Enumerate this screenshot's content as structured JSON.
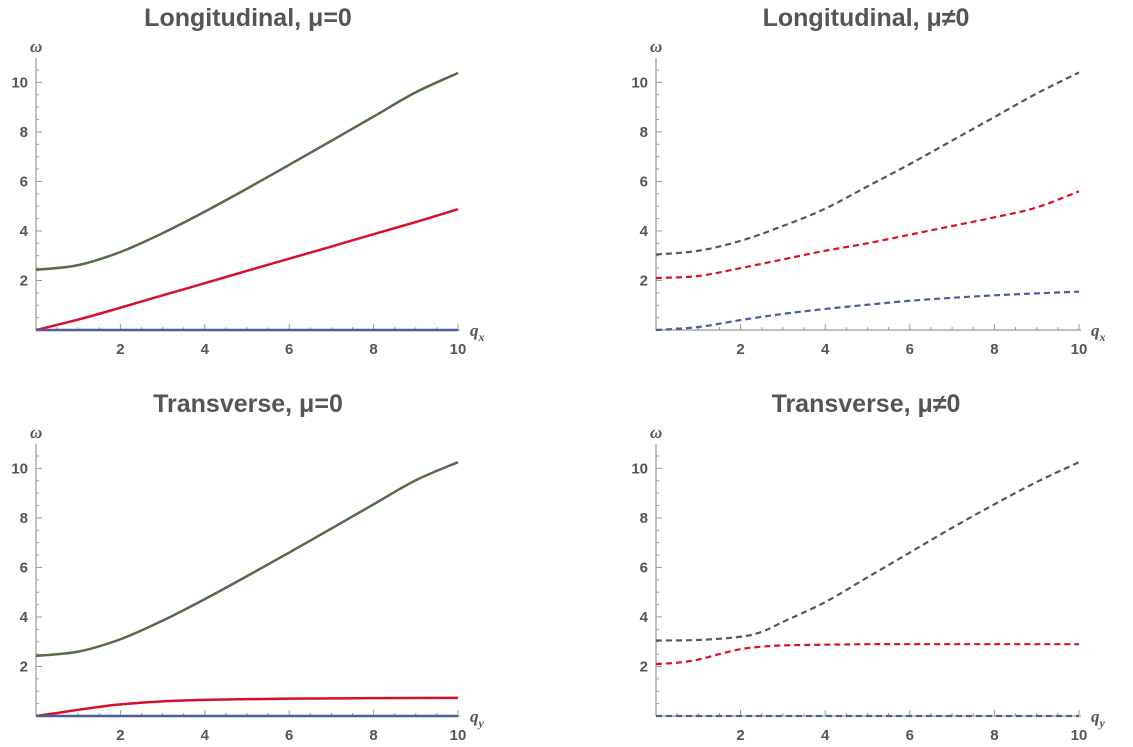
{
  "chart_data": [
    {
      "type": "line",
      "title": "Longitudinal, μ=0",
      "xlabel": "q",
      "xlabel_sub": "x",
      "ylabel": "ω",
      "xlim": [
        0,
        10
      ],
      "ylim": [
        0,
        10.5
      ],
      "xticks": [
        2,
        4,
        6,
        8,
        10
      ],
      "yticks": [
        2,
        4,
        6,
        8,
        10
      ],
      "dashed": false,
      "series": [
        {
          "color": "#566b4a",
          "x": [
            0,
            1,
            2,
            3,
            4,
            5,
            6,
            7,
            8,
            9,
            10
          ],
          "y": [
            2.43,
            2.62,
            3.15,
            3.91,
            4.78,
            5.71,
            6.67,
            7.64,
            8.62,
            9.6,
            10.38
          ]
        },
        {
          "color": "#d8112b",
          "x": [
            0,
            1,
            2,
            3,
            4,
            5,
            6,
            7,
            8,
            9,
            10
          ],
          "y": [
            0,
            0.42,
            0.9,
            1.4,
            1.89,
            2.39,
            2.88,
            3.37,
            3.87,
            4.36,
            4.88
          ]
        },
        {
          "color": "#4a5e9b",
          "x": [
            0,
            2,
            4,
            6,
            8,
            10
          ],
          "y": [
            0,
            0,
            0,
            0,
            0,
            0
          ]
        }
      ]
    },
    {
      "type": "line",
      "title": "Longitudinal, μ≠0",
      "xlabel": "q",
      "xlabel_sub": "x",
      "ylabel": "ω",
      "xlim": [
        0,
        10
      ],
      "ylim": [
        0,
        10.5
      ],
      "xticks": [
        2,
        4,
        6,
        8,
        10
      ],
      "yticks": [
        2,
        4,
        6,
        8,
        10
      ],
      "dashed": true,
      "series": [
        {
          "color": "#565b48",
          "x": [
            0,
            1,
            2,
            3,
            4,
            5,
            6,
            7,
            8,
            9,
            10
          ],
          "y": [
            3.05,
            3.2,
            3.6,
            4.2,
            4.9,
            5.8,
            6.7,
            7.65,
            8.6,
            9.55,
            10.4
          ]
        },
        {
          "color": "#d8112b",
          "x": [
            0,
            1,
            2,
            3,
            4,
            5,
            6,
            7,
            8,
            9,
            10
          ],
          "y": [
            2.1,
            2.18,
            2.5,
            2.85,
            3.2,
            3.5,
            3.85,
            4.2,
            4.55,
            4.95,
            5.6
          ]
        },
        {
          "color": "#4a5e9b",
          "x": [
            0,
            1,
            2,
            3,
            4,
            5,
            6,
            7,
            8,
            9,
            10
          ],
          "y": [
            0,
            0.12,
            0.4,
            0.65,
            0.85,
            1.02,
            1.18,
            1.3,
            1.4,
            1.48,
            1.55
          ]
        }
      ]
    },
    {
      "type": "line",
      "title": "Transverse, μ=0",
      "xlabel": "q",
      "xlabel_sub": "y",
      "ylabel": "ω",
      "xlim": [
        0,
        10
      ],
      "ylim": [
        0,
        10.5
      ],
      "xticks": [
        2,
        4,
        6,
        8,
        10
      ],
      "yticks": [
        2,
        4,
        6,
        8,
        10
      ],
      "dashed": false,
      "series": [
        {
          "color": "#566b4a",
          "x": [
            0,
            1,
            2,
            3,
            4,
            5,
            6,
            7,
            8,
            9,
            10
          ],
          "y": [
            2.43,
            2.6,
            3.1,
            3.85,
            4.72,
            5.65,
            6.6,
            7.57,
            8.55,
            9.52,
            10.25
          ]
        },
        {
          "color": "#d8112b",
          "x": [
            0,
            0.5,
            1,
            1.5,
            2,
            3,
            4,
            5,
            6,
            7,
            8,
            10
          ],
          "y": [
            0,
            0.12,
            0.25,
            0.37,
            0.47,
            0.59,
            0.65,
            0.68,
            0.7,
            0.71,
            0.72,
            0.73
          ]
        },
        {
          "color": "#4a5e9b",
          "x": [
            0,
            2,
            4,
            6,
            8,
            10
          ],
          "y": [
            0,
            0,
            0,
            0,
            0,
            0
          ]
        }
      ]
    },
    {
      "type": "line",
      "title": "Transverse, μ≠0",
      "xlabel": "q",
      "xlabel_sub": "y",
      "ylabel": "ω",
      "xlim": [
        0,
        10
      ],
      "ylim": [
        0,
        10.5
      ],
      "xticks": [
        2,
        4,
        6,
        8,
        10
      ],
      "yticks": [
        2,
        4,
        6,
        8,
        10
      ],
      "dashed": true,
      "series": [
        {
          "color": "#565b48",
          "x": [
            0,
            1,
            2,
            2.5,
            3,
            4,
            5,
            6,
            7,
            8,
            9,
            10
          ],
          "y": [
            3.05,
            3.07,
            3.2,
            3.4,
            3.8,
            4.6,
            5.6,
            6.6,
            7.6,
            8.55,
            9.45,
            10.25
          ]
        },
        {
          "color": "#d8112b",
          "x": [
            0,
            0.5,
            1,
            1.5,
            2,
            2.5,
            3,
            4,
            5,
            6,
            8,
            10
          ],
          "y": [
            2.1,
            2.15,
            2.28,
            2.5,
            2.7,
            2.8,
            2.85,
            2.88,
            2.9,
            2.9,
            2.9,
            2.9
          ]
        },
        {
          "color": "#4a5e9b",
          "x": [
            0,
            2,
            4,
            6,
            8,
            10
          ],
          "y": [
            0,
            0,
            0,
            0,
            0,
            0
          ]
        }
      ]
    }
  ]
}
